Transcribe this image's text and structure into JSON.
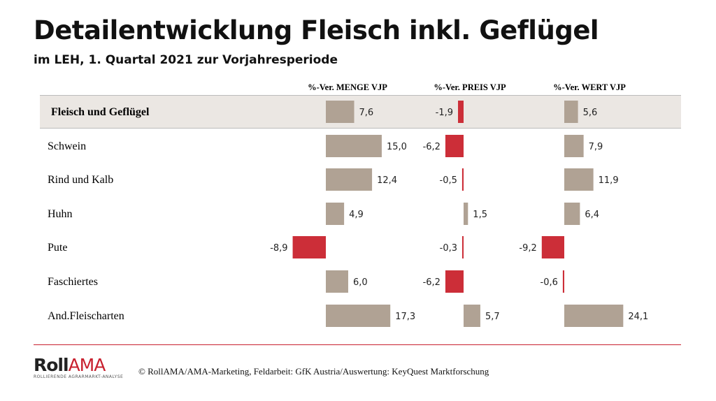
{
  "title": "Detailentwicklung Fleisch inkl. Geflügel",
  "subtitle": "im LEH, 1. Quartal 2021 zur Vorjahresperiode",
  "footer": {
    "logo_roll": "Roll",
    "logo_ama": "AMA",
    "logo_tagline": "ROLLIERENDE AGRARMARKT-ANALYSE",
    "copyright": "© RollAMA/AMA-Marketing, Feldarbeit: GfK Austria/Auswertung: KeyQuest Marktforschung"
  },
  "colors": {
    "positive": "#b0a294",
    "negative": "#cc2e38",
    "highlight_bg": "#ebe7e3"
  },
  "chart_data": {
    "type": "bar",
    "orientation": "horizontal",
    "categories": [
      "Fleisch und Geflügel",
      "Schwein",
      "Rind und Kalb",
      "Huhn",
      "Pute",
      "Faschiertes",
      "And.Fleischarten"
    ],
    "highlighted_category": "Fleisch und Geflügel",
    "series": [
      {
        "name": "%-Ver. MENGE VJP",
        "values": [
          7.6,
          15.0,
          12.4,
          4.9,
          -8.9,
          6.0,
          17.3
        ],
        "labels": [
          "7,6",
          "15,0",
          "12,4",
          "4,9",
          "-8,9",
          "6,0",
          "17,3"
        ]
      },
      {
        "name": "%-Ver. PREIS VJP",
        "values": [
          -1.9,
          -6.2,
          -0.5,
          1.5,
          -0.3,
          -6.2,
          5.7
        ],
        "labels": [
          "-1,9",
          "-6,2",
          "-0,5",
          "1,5",
          "-0,3",
          "-6,2",
          "5,7"
        ]
      },
      {
        "name": "%-Ver. WERT VJP",
        "values": [
          5.6,
          7.9,
          11.9,
          6.4,
          -9.2,
          -0.6,
          24.1
        ],
        "labels": [
          "5,6",
          "7,9",
          "11,9",
          "6,4",
          "-9,2",
          "-0,6",
          "24,1"
        ]
      }
    ]
  }
}
